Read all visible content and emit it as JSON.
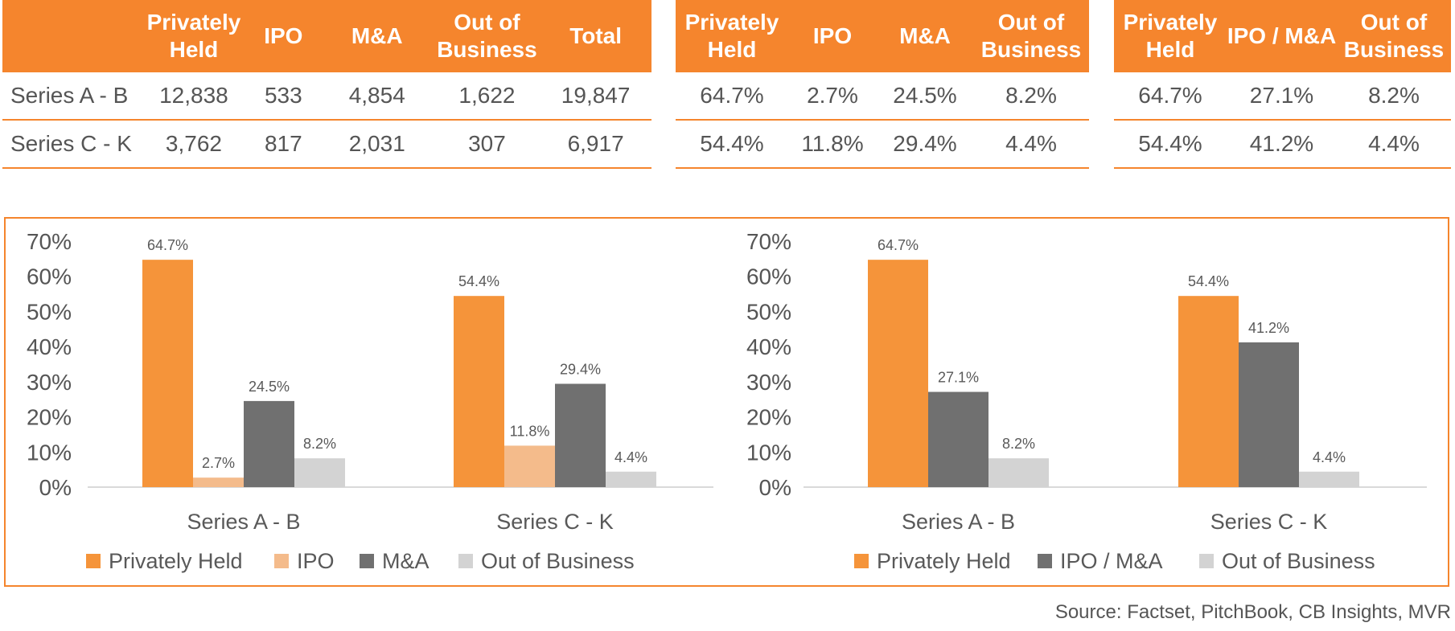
{
  "tables": [
    {
      "headers": [
        "",
        "Privately Held",
        "IPO",
        "M&A",
        "Out of Business",
        "Total"
      ],
      "rows": [
        [
          "Series A - B",
          "12,838",
          "533",
          "4,854",
          "1,622",
          "19,847"
        ],
        [
          "Series C - K",
          "3,762",
          "817",
          "2,031",
          "307",
          "6,917"
        ]
      ]
    },
    {
      "headers": [
        "Privately Held",
        "IPO",
        "M&A",
        "Out of Business"
      ],
      "rows": [
        [
          "64.7%",
          "2.7%",
          "24.5%",
          "8.2%"
        ],
        [
          "54.4%",
          "11.8%",
          "29.4%",
          "4.4%"
        ]
      ]
    },
    {
      "headers": [
        "Privately Held",
        "IPO / M&A",
        "Out of Business"
      ],
      "rows": [
        [
          "64.7%",
          "27.1%",
          "8.2%"
        ],
        [
          "54.4%",
          "41.2%",
          "4.4%"
        ]
      ]
    }
  ],
  "chart_data": [
    {
      "type": "bar",
      "categories": [
        "Series A - B",
        "Series C - K"
      ],
      "series": [
        {
          "name": "Privately Held",
          "values": [
            64.7,
            54.4
          ],
          "labels": [
            "64.7%",
            "54.4%"
          ],
          "color": "#F5943A"
        },
        {
          "name": "IPO",
          "values": [
            2.7,
            11.8
          ],
          "labels": [
            "2.7%",
            "11.8%"
          ],
          "color": "#F4BB8B"
        },
        {
          "name": "M&A",
          "values": [
            24.5,
            29.4
          ],
          "labels": [
            "24.5%",
            "29.4%"
          ],
          "color": "#707070"
        },
        {
          "name": "Out of Business",
          "values": [
            8.2,
            4.4
          ],
          "labels": [
            "8.2%",
            "4.4%"
          ],
          "color": "#D3D3D3"
        }
      ],
      "yticks": [
        "0%",
        "10%",
        "20%",
        "30%",
        "40%",
        "50%",
        "60%",
        "70%"
      ],
      "ylim": [
        0,
        70
      ],
      "legend": "bottom",
      "grid": false
    },
    {
      "type": "bar",
      "categories": [
        "Series A - B",
        "Series C - K"
      ],
      "series": [
        {
          "name": "Privately Held",
          "values": [
            64.7,
            54.4
          ],
          "labels": [
            "64.7%",
            "54.4%"
          ],
          "color": "#F5943A"
        },
        {
          "name": "IPO / M&A",
          "values": [
            27.1,
            41.2
          ],
          "labels": [
            "27.1%",
            "41.2%"
          ],
          "color": "#707070"
        },
        {
          "name": "Out of Business",
          "values": [
            8.2,
            4.4
          ],
          "labels": [
            "8.2%",
            "4.4%"
          ],
          "color": "#D3D3D3"
        }
      ],
      "yticks": [
        "0%",
        "10%",
        "20%",
        "30%",
        "40%",
        "50%",
        "60%",
        "70%"
      ],
      "ylim": [
        0,
        70
      ],
      "legend": "bottom",
      "grid": false
    }
  ],
  "source": "Source: Factset, PitchBook, CB Insights, MVR"
}
